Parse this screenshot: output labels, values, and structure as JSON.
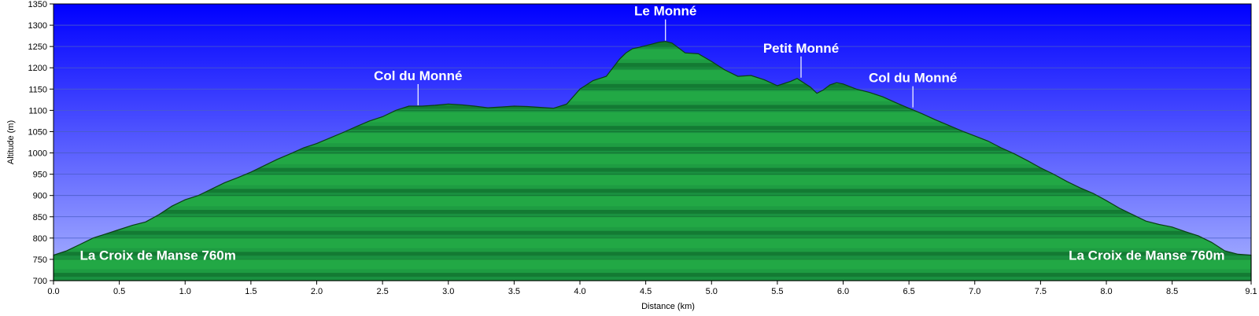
{
  "chart_data": {
    "type": "area",
    "xlabel": "Distance    (km)",
    "ylabel": "Altitude (m)",
    "xlim": [
      0,
      9.1
    ],
    "ylim": [
      700,
      1350
    ],
    "x_ticks": [
      "0.0",
      "0.5",
      "1.0",
      "1.5",
      "2.0",
      "2.5",
      "3.0",
      "3.5",
      "4.0",
      "4.5",
      "5.0",
      "5.5",
      "6.0",
      "6.5",
      "7.0",
      "7.5",
      "8.0",
      "8.5",
      "9.1"
    ],
    "x_tick_values": [
      0,
      0.5,
      1,
      1.5,
      2,
      2.5,
      3,
      3.5,
      4,
      4.5,
      5,
      5.5,
      6,
      6.5,
      7,
      7.5,
      8,
      8.5,
      9.1
    ],
    "y_ticks": [
      "700",
      "750",
      "800",
      "850",
      "900",
      "950",
      "1000",
      "1050",
      "1100",
      "1150",
      "1200",
      "1250",
      "1300",
      "1350"
    ],
    "y_tick_values": [
      700,
      750,
      800,
      850,
      900,
      950,
      1000,
      1050,
      1100,
      1150,
      1200,
      1250,
      1300,
      1350
    ],
    "grid": true,
    "colors": {
      "sky_top": "#0000ff",
      "sky_bottom": "#aab4ff",
      "terrain": "#22a845",
      "terrain_dark": "#0d6b2a",
      "outline": "#0a3d14"
    },
    "profile": {
      "x": [
        0.0,
        0.1,
        0.2,
        0.3,
        0.4,
        0.5,
        0.6,
        0.7,
        0.8,
        0.9,
        1.0,
        1.1,
        1.2,
        1.3,
        1.4,
        1.5,
        1.6,
        1.7,
        1.8,
        1.9,
        2.0,
        2.1,
        2.2,
        2.3,
        2.4,
        2.5,
        2.6,
        2.7,
        2.8,
        2.9,
        3.0,
        3.1,
        3.2,
        3.3,
        3.4,
        3.5,
        3.6,
        3.7,
        3.8,
        3.9,
        4.0,
        4.1,
        4.2,
        4.3,
        4.35,
        4.4,
        4.45,
        4.5,
        4.55,
        4.6,
        4.65,
        4.7,
        4.8,
        4.9,
        5.0,
        5.1,
        5.2,
        5.3,
        5.4,
        5.5,
        5.6,
        5.65,
        5.7,
        5.75,
        5.8,
        5.85,
        5.9,
        5.95,
        6.0,
        6.1,
        6.2,
        6.3,
        6.4,
        6.5,
        6.6,
        6.7,
        6.8,
        6.9,
        7.0,
        7.1,
        7.2,
        7.3,
        7.4,
        7.5,
        7.6,
        7.7,
        7.8,
        7.9,
        8.0,
        8.1,
        8.2,
        8.3,
        8.4,
        8.5,
        8.6,
        8.7,
        8.8,
        8.9,
        9.0,
        9.1
      ],
      "y": [
        760,
        770,
        785,
        800,
        810,
        820,
        830,
        838,
        855,
        875,
        890,
        900,
        915,
        930,
        942,
        955,
        970,
        985,
        998,
        1012,
        1022,
        1035,
        1048,
        1062,
        1075,
        1085,
        1100,
        1110,
        1110,
        1112,
        1115,
        1113,
        1110,
        1106,
        1108,
        1110,
        1109,
        1107,
        1105,
        1115,
        1150,
        1170,
        1180,
        1220,
        1235,
        1245,
        1248,
        1252,
        1256,
        1260,
        1262,
        1258,
        1235,
        1233,
        1215,
        1195,
        1180,
        1182,
        1172,
        1158,
        1168,
        1175,
        1165,
        1155,
        1140,
        1148,
        1160,
        1165,
        1162,
        1150,
        1142,
        1132,
        1118,
        1105,
        1092,
        1078,
        1065,
        1052,
        1040,
        1028,
        1012,
        998,
        982,
        965,
        950,
        933,
        918,
        905,
        888,
        870,
        855,
        840,
        832,
        826,
        815,
        805,
        790,
        770,
        762,
        760
      ]
    },
    "annotations": [
      {
        "label": "La Croix de Manse 760m",
        "x": 0.2,
        "y": 760,
        "leader": false,
        "anchor": "start"
      },
      {
        "label": "Col du Monné",
        "x": 2.77,
        "y": 1110,
        "leader": true,
        "anchor": "middle"
      },
      {
        "label": "Le Monné",
        "x": 4.65,
        "y": 1262,
        "leader": true,
        "anchor": "middle"
      },
      {
        "label": "Petit Monné",
        "x": 5.68,
        "y": 1175,
        "leader": true,
        "anchor": "middle"
      },
      {
        "label": "Col du Monné",
        "x": 6.53,
        "y": 1105,
        "leader": true,
        "anchor": "middle"
      },
      {
        "label": "La Croix de Manse 760m",
        "x": 8.9,
        "y": 760,
        "leader": false,
        "anchor": "end"
      }
    ]
  }
}
